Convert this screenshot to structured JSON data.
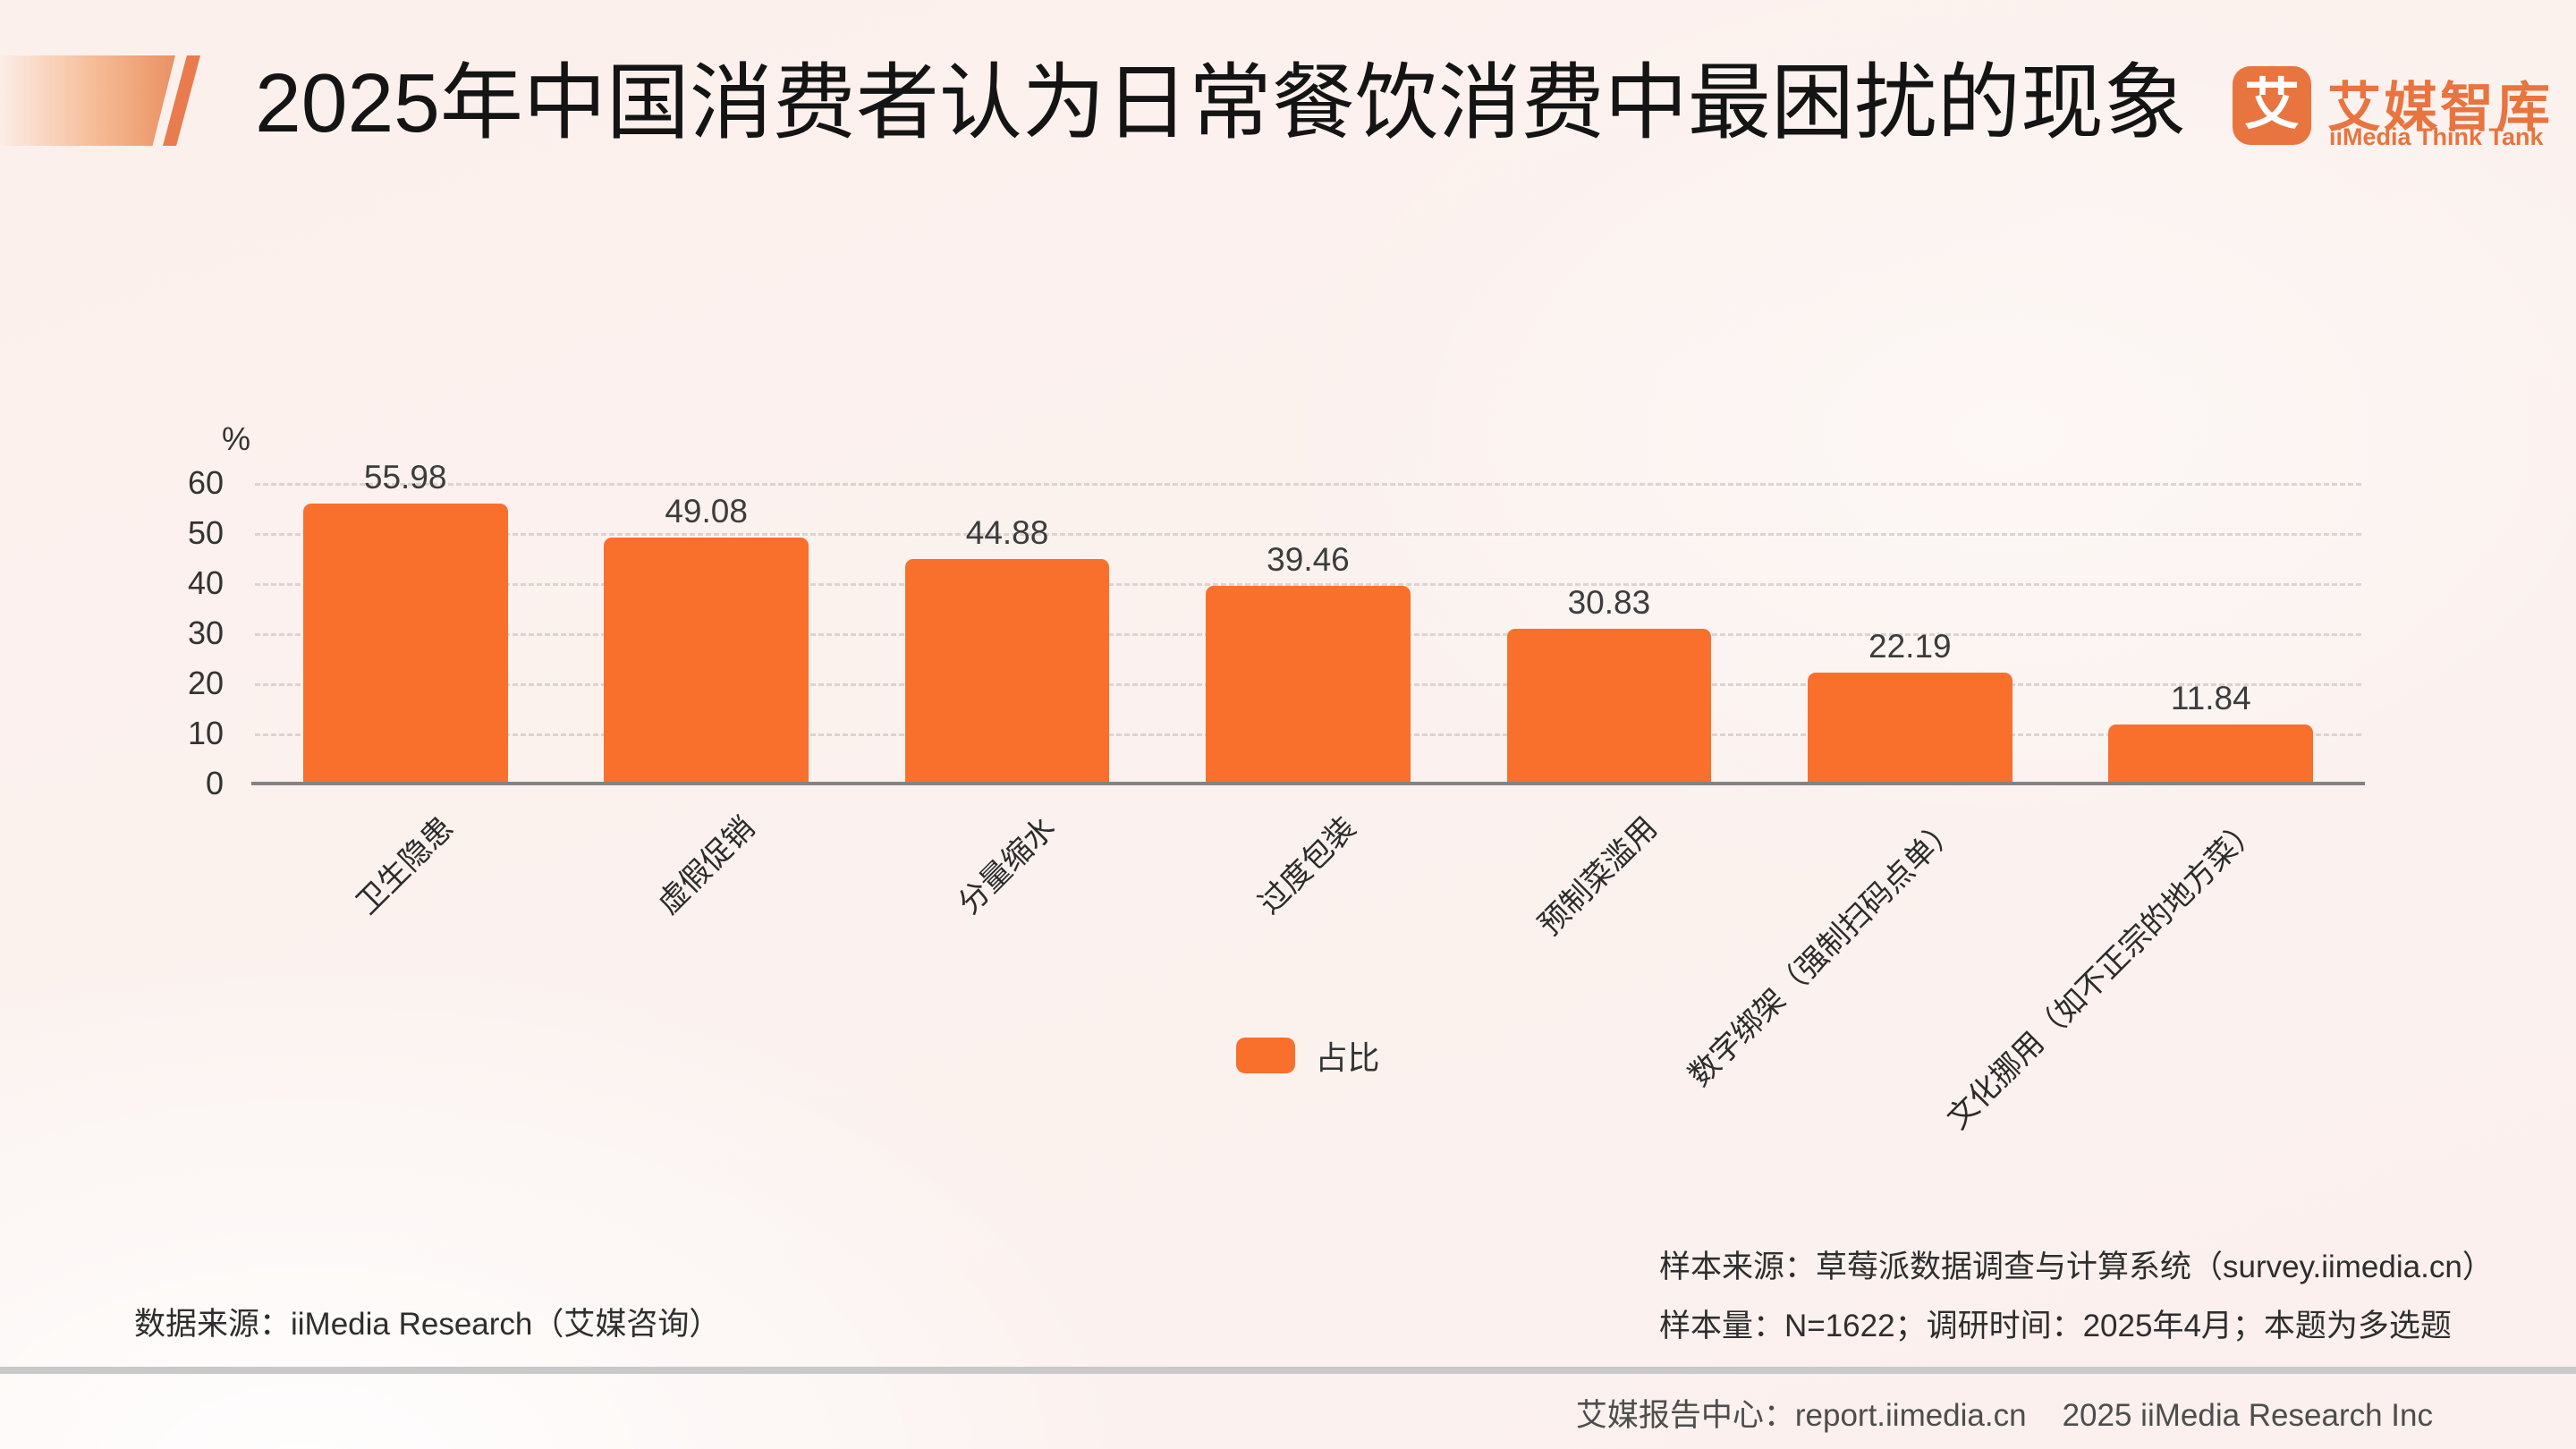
{
  "header": {
    "title": "2025年中国消费者认为日常餐饮消费中最困扰的现象",
    "logo": {
      "icon_char": "艾",
      "name_cn": "艾媒智库",
      "name_en": "iiMedia Think Tank"
    }
  },
  "chart_data": {
    "type": "bar",
    "title": "2025年中国消费者认为日常餐饮消费中最困扰的现象",
    "categories": [
      "卫生隐患",
      "虚假促销",
      "分量缩水",
      "过度包装",
      "预制菜滥用",
      "数字绑架（强制扫码点单）",
      "文化挪用（如不正宗的地方菜）"
    ],
    "values": [
      55.98,
      49.08,
      44.88,
      39.46,
      30.83,
      22.19,
      11.84
    ],
    "series_name": "占比",
    "unit_label": "%",
    "ylabel": "%",
    "xlabel": "",
    "ylim": [
      0,
      60
    ],
    "yticks": [
      0,
      10,
      20,
      30,
      40,
      50,
      60
    ],
    "grid": true,
    "gridline_style": "dashed",
    "legend_position": "bottom-center",
    "value_label_decimals": 2
  },
  "legend": {
    "label": "占比"
  },
  "footnotes": {
    "data_source": "数据来源：iiMedia Research（艾媒咨询）",
    "sample_source": "样本来源：草莓派数据调查与计算系统（survey.iimedia.cn）",
    "sample_info": "样本量：N=1622；调研时间：2025年4月；本题为多选题"
  },
  "footer": {
    "report_center": "艾媒报告中心：report.iimedia.cn",
    "copyright": "2025 iiMedia Research Inc"
  },
  "colors": {
    "bar": "#f96f2c",
    "logo_orange": "#e8743f",
    "background": "#fbf1ee",
    "gridline": "#ddd3cf",
    "axis_line": "#838383",
    "divider_gray": "#c9c9c9",
    "title_text": "#141414"
  }
}
